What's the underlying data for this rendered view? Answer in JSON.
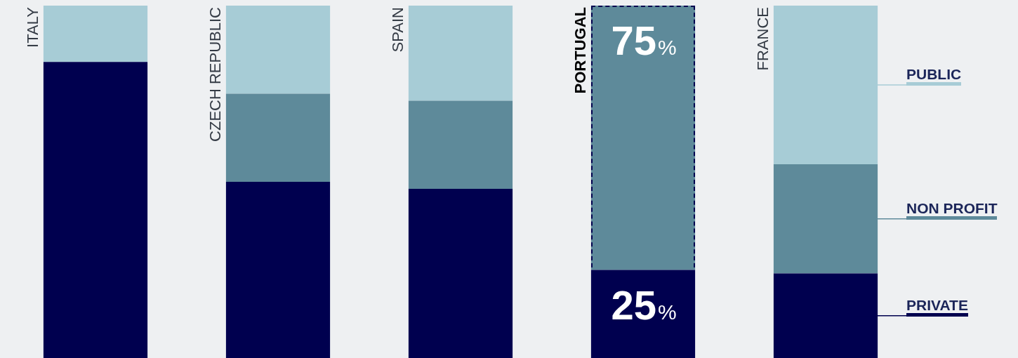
{
  "chart_data": {
    "type": "bar",
    "stacked": true,
    "ylim": [
      0,
      100
    ],
    "legend": "right",
    "tick_labels": "x",
    "categories": [
      "ITALY",
      "CZECH REPUBLIC",
      "SPAIN",
      "PORTUGAL",
      "FRANCE"
    ],
    "series": [
      {
        "name": "PRIVATE",
        "color": "#00004f",
        "values": [
          84,
          50,
          48,
          25,
          24
        ],
        "value_labels": [
          null,
          null,
          null,
          "25%",
          null
        ]
      },
      {
        "name": "NON PROFIT",
        "color": "#5e8a9a",
        "values": [
          0,
          25,
          25,
          75,
          31
        ],
        "value_labels": [
          null,
          null,
          null,
          "75%",
          null
        ]
      },
      {
        "name": "PUBLIC",
        "color": "#a7ccd6",
        "values": [
          16,
          25,
          27,
          0,
          45
        ],
        "value_labels": [
          null,
          null,
          null,
          null,
          null
        ]
      }
    ]
  }
}
